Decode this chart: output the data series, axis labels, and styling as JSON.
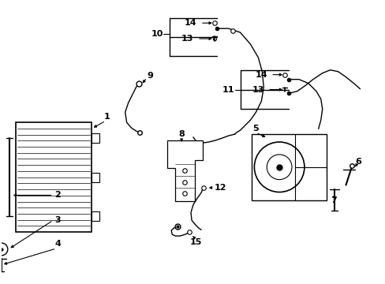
{
  "background_color": "#ffffff",
  "fig_width": 4.89,
  "fig_height": 3.6,
  "dpi": 100,
  "lc": "#000000"
}
